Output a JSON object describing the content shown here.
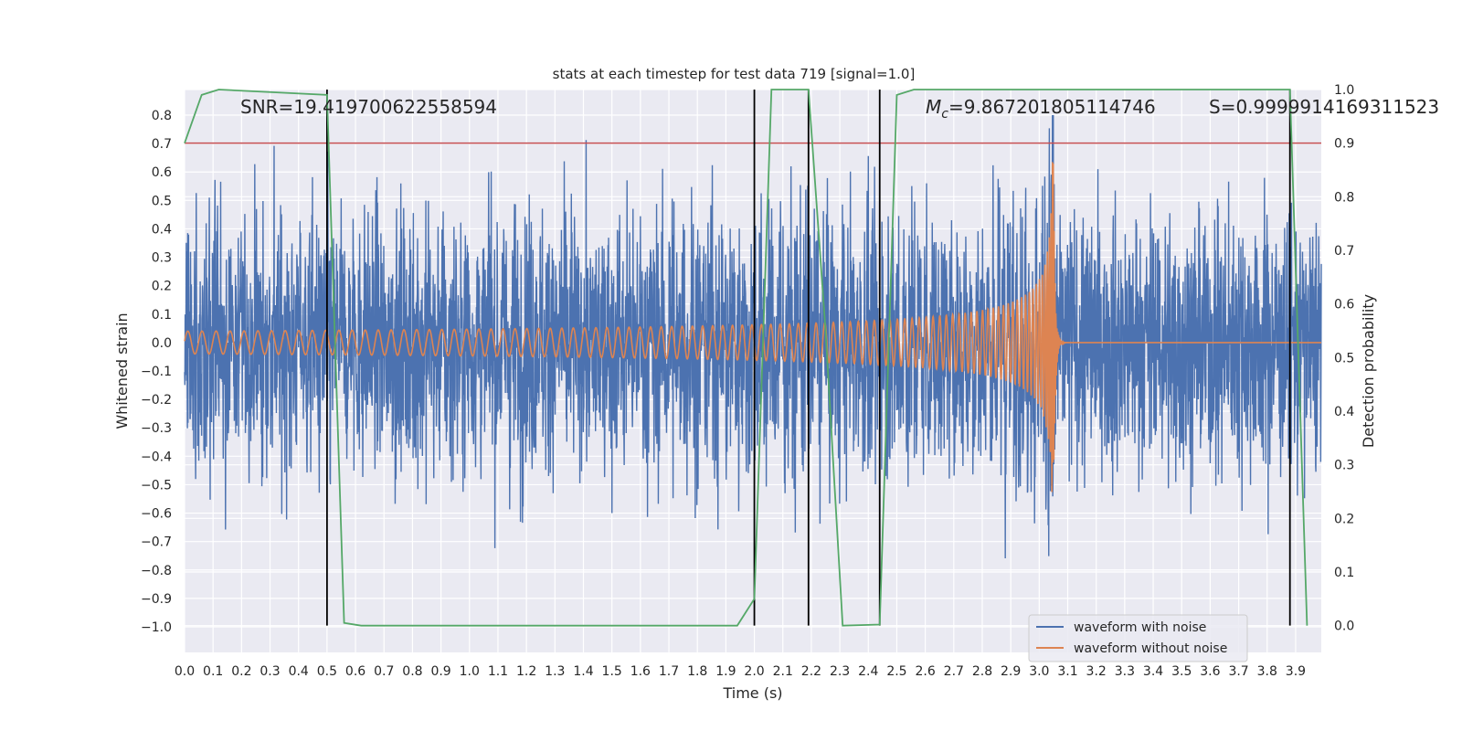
{
  "chart_data": {
    "type": "line",
    "title": "stats at each timestep for test data 719 [signal=1.0]",
    "xlabel": "Time (s)",
    "ylabel": "Whitened strain",
    "y2label": "Detection probability",
    "xlim": [
      0.0,
      3.99
    ],
    "ylim": [
      -1.09,
      0.89
    ],
    "y2lim": [
      -0.05,
      1.0
    ],
    "grid": true,
    "x_ticks": [
      "0.0",
      "0.1",
      "0.2",
      "0.3",
      "0.4",
      "0.5",
      "0.6",
      "0.7",
      "0.8",
      "0.9",
      "1.0",
      "1.1",
      "1.2",
      "1.3",
      "1.4",
      "1.5",
      "1.6",
      "1.7",
      "1.8",
      "1.9",
      "2.0",
      "2.1",
      "2.2",
      "2.3",
      "2.4",
      "2.5",
      "2.6",
      "2.7",
      "2.8",
      "2.9",
      "3.0",
      "3.1",
      "3.2",
      "3.3",
      "3.4",
      "3.5",
      "3.6",
      "3.7",
      "3.8",
      "3.9"
    ],
    "y_ticks": [
      "0.8",
      "0.7",
      "0.6",
      "0.5",
      "0.4",
      "0.3",
      "0.2",
      "0.1",
      "0.0",
      "−0.1",
      "−0.2",
      "−0.3",
      "−0.4",
      "−0.5",
      "−0.6",
      "−0.7",
      "−0.8",
      "−0.9",
      "−1.0"
    ],
    "y2_ticks": [
      "1.0",
      "0.9",
      "0.8",
      "0.7",
      "0.6",
      "0.5",
      "0.4",
      "0.3",
      "0.2",
      "0.1",
      "0.0"
    ],
    "annotations": {
      "snr": "SNR=19.419700622558594",
      "mc_symbol": "M",
      "mc_sub": "c",
      "mc_value": "=9.867201805114746",
      "s": "S=0.9999914169311523"
    },
    "threshold": {
      "value": 0.9,
      "axis": "y2",
      "color": "#C44E52"
    },
    "detections": [
      0.5,
      2.0,
      2.19,
      2.44,
      3.88
    ],
    "series": [
      {
        "name": "waveform with noise",
        "color": "#4C72B0",
        "description": "noisy whitened strain, amplitude roughly ±0.5 with peaks to ±0.8, t = 0–4 s",
        "amplitude_envelope": [
          [
            0.0,
            0.3
          ],
          [
            3.0,
            0.3
          ],
          [
            3.05,
            0.5
          ],
          [
            3.99,
            0.3
          ]
        ]
      },
      {
        "name": "waveform without noise",
        "color": "#DD8452",
        "description": "chirp signal: amplitude ~0.04 growing to ~0.65 with frequency increasing, merger near t = 3.05 s, ringdown to 0",
        "start_freq_hz": 20,
        "merger_time": 3.05,
        "start_amplitude": 0.04,
        "peak_amplitude": 0.65
      },
      {
        "name": "detection probability",
        "color": "#55A868",
        "axis": "y2",
        "x": [
          0.0,
          0.06,
          0.12,
          0.5,
          0.56,
          0.62,
          1.94,
          2.0,
          2.06,
          2.19,
          2.25,
          2.31,
          2.44,
          2.5,
          2.56,
          3.88,
          3.94
        ],
        "y": [
          0.9,
          0.99,
          1.0,
          0.99,
          0.005,
          0.0,
          0.0,
          0.05,
          1.0,
          1.0,
          0.55,
          0.0,
          0.002,
          0.99,
          1.0,
          1.0,
          0.0
        ]
      }
    ],
    "legend": {
      "location": "lower-right",
      "entries": [
        "waveform with noise",
        "waveform without noise"
      ]
    }
  }
}
